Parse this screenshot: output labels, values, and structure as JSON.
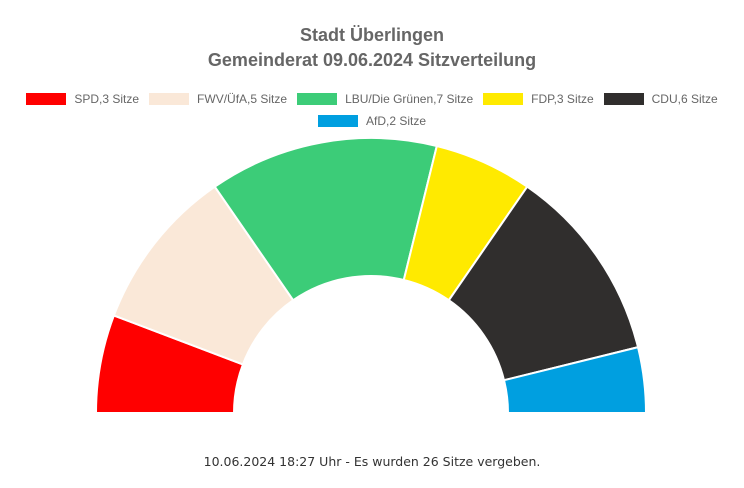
{
  "chart_data": {
    "type": "pie",
    "subtype": "half-doughnut",
    "title": "Stadt Überlingen",
    "subtitle": "Gemeinderat 09.06.2024 Sitzverteilung",
    "legend_position": "top",
    "series": [
      {
        "name": "SPD",
        "label": "SPD,3 Sitze",
        "value": 3,
        "color": "#ff0000"
      },
      {
        "name": "FWV/ÜfA",
        "label": "FWV/ÜfA,5 Sitze",
        "value": 5,
        "color": "#fae8d8"
      },
      {
        "name": "LBU/Die Grünen",
        "label": "LBU/Die Grünen,7 Sitze",
        "value": 7,
        "color": "#3ccc78"
      },
      {
        "name": "FDP",
        "label": "FDP,3 Sitze",
        "value": 3,
        "color": "#ffea00"
      },
      {
        "name": "CDU",
        "label": "CDU,6 Sitze",
        "value": 6,
        "color": "#302e2d"
      },
      {
        "name": "AfD",
        "label": "AfD,2 Sitze",
        "value": 2,
        "color": "#009fe0"
      }
    ]
  },
  "footer": "10.06.2024 18:27 Uhr - Es wurden 26 Sitze vergeben."
}
